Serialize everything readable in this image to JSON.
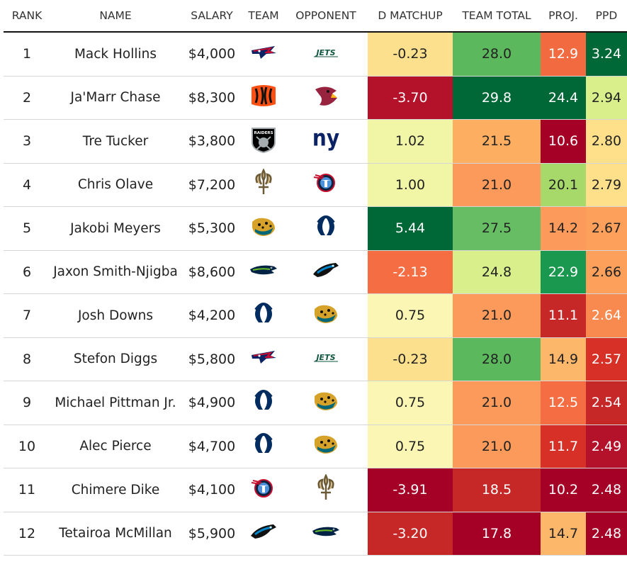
{
  "headers": [
    "RANK",
    "NAME",
    "SALARY",
    "TEAM",
    "OPPONENT",
    "D MATCHUP",
    "TEAM TOTAL",
    "PROJ.",
    "PPD"
  ],
  "logos": {
    "patriots-logo": "Patriots",
    "jets-logo": "JETS",
    "bengals-logo": "Bengals",
    "cardinals-logo": "Cardinals",
    "raiders-logo": "RAIDERS",
    "giants-logo": "ny",
    "saints-logo": "Saints",
    "titans-logo": "Titans",
    "jaguars-logo": "Jaguars",
    "colts-logo": "Colts",
    "seahawks-logo": "Seahawks",
    "panthers-logo": "Panthers"
  },
  "chart_data": {
    "type": "table",
    "columns": [
      "RANK",
      "NAME",
      "SALARY",
      "TEAM",
      "OPPONENT",
      "D MATCHUP",
      "TEAM TOTAL",
      "PROJ.",
      "PPD"
    ],
    "rows": [
      {
        "rank": "1",
        "name": "Mack Hollins",
        "salary": "$4,000",
        "team": "patriots",
        "opponent": "jets",
        "d_matchup": "-0.23",
        "team_total": "28.0",
        "proj": "12.9",
        "ppd": "3.24",
        "colors": [
          "#fde08d",
          "#5cb85c",
          "#f26b40",
          "#006837"
        ]
      },
      {
        "rank": "2",
        "name": "Ja'Marr Chase",
        "salary": "$8,300",
        "team": "bengals",
        "opponent": "cardinals",
        "d_matchup": "-3.70",
        "team_total": "29.8",
        "proj": "24.4",
        "ppd": "2.94",
        "colors": [
          "#b3122a",
          "#006837",
          "#006837",
          "#d9ef8b"
        ]
      },
      {
        "rank": "3",
        "name": "Tre Tucker",
        "salary": "$3,800",
        "team": "raiders",
        "opponent": "giants",
        "d_matchup": "1.02",
        "team_total": "21.5",
        "proj": "10.6",
        "ppd": "2.80",
        "colors": [
          "#f1f6a6",
          "#fdae61",
          "#a50026",
          "#fee08b"
        ]
      },
      {
        "rank": "4",
        "name": "Chris Olave",
        "salary": "$7,200",
        "team": "saints",
        "opponent": "titans",
        "d_matchup": "1.00",
        "team_total": "21.0",
        "proj": "20.1",
        "ppd": "2.79",
        "colors": [
          "#f1f6a6",
          "#fb9a5a",
          "#a6d96a",
          "#fee08b"
        ]
      },
      {
        "rank": "5",
        "name": "Jakobi Meyers",
        "salary": "$5,300",
        "team": "jaguars",
        "opponent": "colts",
        "d_matchup": "5.44",
        "team_total": "27.5",
        "proj": "14.2",
        "ppd": "2.67",
        "colors": [
          "#006837",
          "#66bd63",
          "#fb9a5a",
          "#fca05c"
        ]
      },
      {
        "rank": "6",
        "name": "Jaxon Smith-Njigba",
        "salary": "$8,600",
        "team": "seahawks",
        "opponent": "panthers",
        "d_matchup": "-2.13",
        "team_total": "24.8",
        "proj": "22.9",
        "ppd": "2.66",
        "colors": [
          "#f46d43",
          "#d9ef8b",
          "#1a9850",
          "#fca05c"
        ]
      },
      {
        "rank": "7",
        "name": "Josh Downs",
        "salary": "$4,200",
        "team": "colts",
        "opponent": "jaguars",
        "d_matchup": "0.75",
        "team_total": "21.0",
        "proj": "11.1",
        "ppd": "2.64",
        "colors": [
          "#fbf6b3",
          "#fb9a5a",
          "#c62828",
          "#f88a50"
        ]
      },
      {
        "rank": "8",
        "name": "Stefon Diggs",
        "salary": "$5,800",
        "team": "patriots",
        "opponent": "jets",
        "d_matchup": "-0.23",
        "team_total": "28.0",
        "proj": "14.9",
        "ppd": "2.57",
        "colors": [
          "#fde08d",
          "#5cb85c",
          "#fdb76a",
          "#d73027"
        ]
      },
      {
        "rank": "9",
        "name": "Michael Pittman Jr.",
        "salary": "$4,900",
        "team": "colts",
        "opponent": "jaguars",
        "d_matchup": "0.75",
        "team_total": "21.0",
        "proj": "12.5",
        "ppd": "2.54",
        "colors": [
          "#fbf6b3",
          "#fb9a5a",
          "#f46d43",
          "#c62828"
        ]
      },
      {
        "rank": "10",
        "name": "Alec Pierce",
        "salary": "$4,700",
        "team": "colts",
        "opponent": "jaguars",
        "d_matchup": "0.75",
        "team_total": "21.0",
        "proj": "11.7",
        "ppd": "2.49",
        "colors": [
          "#fbf6b3",
          "#fb9a5a",
          "#d73027",
          "#b3122a"
        ]
      },
      {
        "rank": "11",
        "name": "Chimere Dike",
        "salary": "$4,100",
        "team": "titans",
        "opponent": "saints",
        "d_matchup": "-3.91",
        "team_total": "18.5",
        "proj": "10.2",
        "ppd": "2.48",
        "colors": [
          "#a50026",
          "#c62828",
          "#a50026",
          "#a50026"
        ]
      },
      {
        "rank": "12",
        "name": "Tetairoa McMillan",
        "salary": "$5,900",
        "team": "panthers",
        "opponent": "seahawks",
        "d_matchup": "-3.20",
        "team_total": "17.8",
        "proj": "14.7",
        "ppd": "2.48",
        "colors": [
          "#c62828",
          "#a50026",
          "#fdb76a",
          "#a50026"
        ]
      }
    ]
  }
}
